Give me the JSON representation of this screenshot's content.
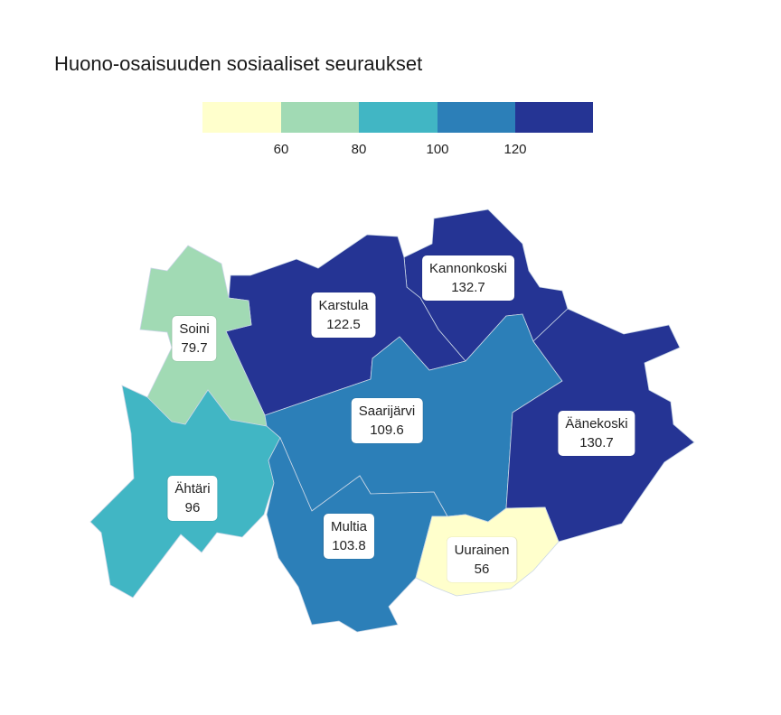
{
  "title": "Huono-osaisuuden sosiaaliset seuraukset",
  "legend": {
    "bins": [
      {
        "color": "#ffffcc"
      },
      {
        "color": "#a1dab4"
      },
      {
        "color": "#41b6c4"
      },
      {
        "color": "#2c7fb8"
      },
      {
        "color": "#253494"
      }
    ],
    "ticks": [
      "60",
      "80",
      "100",
      "120"
    ]
  },
  "municipalities": [
    {
      "name": "Kannonkoski",
      "value": "132.7",
      "color": "#253494"
    },
    {
      "name": "Karstula",
      "value": "122.5",
      "color": "#253494"
    },
    {
      "name": "Soini",
      "value": "79.7",
      "color": "#a1dab4"
    },
    {
      "name": "Saarijärvi",
      "value": "109.6",
      "color": "#2c7fb8"
    },
    {
      "name": "Äänekoski",
      "value": "130.7",
      "color": "#253494"
    },
    {
      "name": "Ähtäri",
      "value": "96",
      "color": "#41b6c4"
    },
    {
      "name": "Multia",
      "value": "103.8",
      "color": "#2c7fb8"
    },
    {
      "name": "Uurainen",
      "value": "56",
      "color": "#ffffcc"
    }
  ]
}
